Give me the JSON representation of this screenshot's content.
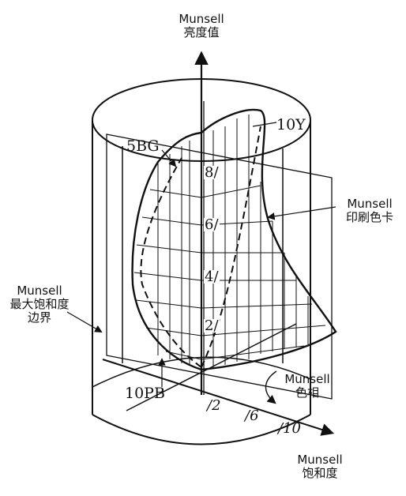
{
  "labels": {
    "value_axis": [
      "Munsell",
      "亮度值"
    ],
    "printing_cards": [
      "Munsell",
      "印刷色卡"
    ],
    "max_chroma_boundary": [
      "Munsell",
      "最大饱和度",
      "边界"
    ],
    "hue": [
      "Munsell",
      "色相"
    ],
    "chroma_axis": [
      "Munsell",
      "饱和度"
    ]
  },
  "hue_labels": {
    "yellow": "10Y",
    "blue_green": "5BG",
    "purple_blue": "10PB"
  },
  "value_ticks": [
    "8/",
    "6/",
    "4/",
    "2/"
  ],
  "chroma_ticks": [
    "/2",
    "/6",
    "/10"
  ],
  "colors": {
    "ink": "#111111",
    "background": "#ffffff"
  }
}
